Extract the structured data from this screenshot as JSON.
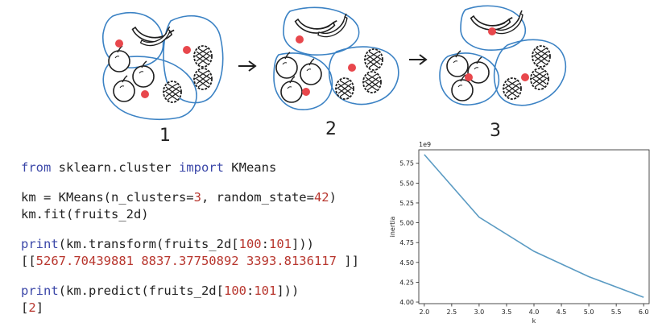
{
  "diagram": {
    "steps": [
      "1",
      "2",
      "3"
    ],
    "colors": {
      "cluster_outline": "#3b82c4",
      "centroid": "#e8474c",
      "ink": "#1f1f1f"
    }
  },
  "code": {
    "lines": [
      [
        {
          "t": "from",
          "c": "kw"
        },
        {
          "t": " sklearn.cluster ",
          "c": "plain"
        },
        {
          "t": "import",
          "c": "kw"
        },
        {
          "t": " KMeans",
          "c": "plain"
        }
      ],
      [
        {
          "t": "km = KMeans(n_clusters=",
          "c": "plain"
        },
        {
          "t": "3",
          "c": "num"
        },
        {
          "t": ", random_state=",
          "c": "plain"
        },
        {
          "t": "42",
          "c": "num"
        },
        {
          "t": ")",
          "c": "plain"
        }
      ],
      [
        {
          "t": "km.fit(fruits_2d)",
          "c": "plain"
        }
      ],
      [
        {
          "t": "print",
          "c": "kw"
        },
        {
          "t": "(km.transform(fruits_2d[",
          "c": "plain"
        },
        {
          "t": "100",
          "c": "num"
        },
        {
          "t": ":",
          "c": "plain"
        },
        {
          "t": "101",
          "c": "num"
        },
        {
          "t": "]))",
          "c": "plain"
        }
      ],
      [
        {
          "t": "[[",
          "c": "plain"
        },
        {
          "t": "5267.70439881 8837.37750892 3393.8136117",
          "c": "num"
        },
        {
          "t": " ]]",
          "c": "plain"
        }
      ],
      [
        {
          "t": "print",
          "c": "kw"
        },
        {
          "t": "(km.predict(fruits_2d[",
          "c": "plain"
        },
        {
          "t": "100",
          "c": "num"
        },
        {
          "t": ":",
          "c": "plain"
        },
        {
          "t": "101",
          "c": "num"
        },
        {
          "t": "]))",
          "c": "plain"
        }
      ],
      [
        {
          "t": "[",
          "c": "plain"
        },
        {
          "t": "2",
          "c": "num"
        },
        {
          "t": "]",
          "c": "plain"
        }
      ]
    ],
    "gaps_before": [
      1,
      3,
      5
    ]
  },
  "chart_data": {
    "type": "line",
    "x": [
      2.0,
      3.0,
      4.0,
      5.0,
      6.0
    ],
    "series": [
      {
        "values": [
          5860000000.0,
          5070000000.0,
          4640000000.0,
          4320000000.0,
          4060000000.0
        ]
      }
    ],
    "xlabel": "k",
    "ylabel": "inertia",
    "offset_label": "1e9",
    "xlim": [
      1.9,
      6.1
    ],
    "ylim": [
      3980000000.0,
      5920000000.0
    ],
    "xticks": [
      2.0,
      2.5,
      3.0,
      3.5,
      4.0,
      4.5,
      5.0,
      5.5,
      6.0
    ],
    "xtick_labels": [
      "2.0",
      "2.5",
      "3.0",
      "3.5",
      "4.0",
      "4.5",
      "5.0",
      "5.5",
      "6.0"
    ],
    "yticks": [
      4.0,
      4.25,
      4.5,
      4.75,
      5.0,
      5.25,
      5.5,
      5.75
    ],
    "ytick_labels": [
      "4.00",
      "4.25",
      "4.50",
      "4.75",
      "5.00",
      "5.25",
      "5.50",
      "5.75"
    ],
    "line_color": "#5b9bc3",
    "grid": false
  }
}
